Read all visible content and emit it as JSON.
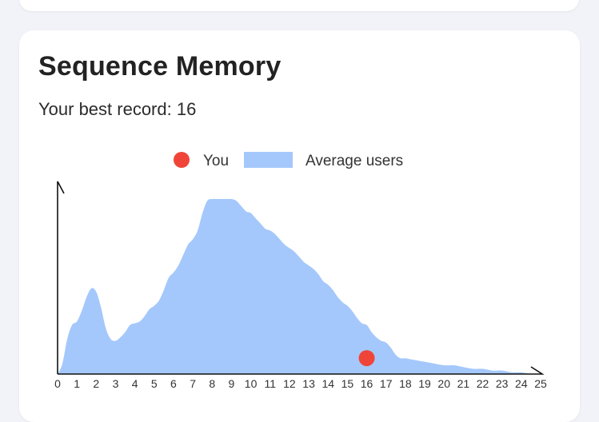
{
  "card": {
    "title": "Sequence Memory",
    "record_label": "Your best record: 16"
  },
  "colors": {
    "you": "#f04438",
    "average": "#a4c8fb",
    "axis": "#111111"
  },
  "chart_data": {
    "type": "area",
    "legend": [
      {
        "name": "You",
        "marker": "circle",
        "color": "#f04438"
      },
      {
        "name": "Average users",
        "marker": "rect",
        "color": "#a4c8fb"
      }
    ],
    "legend_position": "top-center",
    "x_ticks": [
      "0",
      "1",
      "2",
      "3",
      "4",
      "5",
      "6",
      "7",
      "8",
      "9",
      "10",
      "11",
      "12",
      "13",
      "14",
      "15",
      "16",
      "17",
      "18",
      "19",
      "20",
      "21",
      "22",
      "23",
      "24",
      "25"
    ],
    "xlim": [
      0,
      25
    ],
    "ylim": [
      0,
      1
    ],
    "series": [
      {
        "name": "Average users",
        "x": [
          0,
          0.25,
          0.5,
          0.75,
          1,
          1.25,
          1.5,
          1.75,
          2,
          2.25,
          2.5,
          2.75,
          3,
          3.25,
          3.5,
          3.75,
          4,
          4.25,
          4.5,
          4.75,
          5,
          5.25,
          5.5,
          5.75,
          6,
          6.25,
          6.5,
          6.75,
          7,
          7.25,
          7.5,
          7.75,
          8,
          8.25,
          8.5,
          8.75,
          9,
          9.25,
          9.5,
          9.75,
          10,
          10.25,
          10.5,
          10.75,
          11,
          11.25,
          11.5,
          11.75,
          12,
          12.25,
          12.5,
          12.75,
          13,
          13.25,
          13.5,
          13.75,
          14,
          14.25,
          14.5,
          14.75,
          15,
          15.25,
          15.5,
          15.75,
          16,
          16.25,
          16.5,
          16.75,
          17,
          17.25,
          17.5,
          17.75,
          18,
          18.5,
          19,
          19.5,
          20,
          20.5,
          21,
          21.5,
          22,
          22.5,
          23,
          23.5,
          24,
          24.5,
          25
        ],
        "values": [
          0,
          0.06,
          0.2,
          0.28,
          0.3,
          0.36,
          0.44,
          0.49,
          0.47,
          0.38,
          0.26,
          0.2,
          0.19,
          0.21,
          0.24,
          0.28,
          0.29,
          0.3,
          0.33,
          0.37,
          0.39,
          0.42,
          0.48,
          0.55,
          0.58,
          0.62,
          0.68,
          0.74,
          0.77,
          0.82,
          0.92,
          0.99,
          1.0,
          1.0,
          1.0,
          1.0,
          1.0,
          0.99,
          0.96,
          0.93,
          0.92,
          0.89,
          0.86,
          0.83,
          0.82,
          0.8,
          0.77,
          0.74,
          0.72,
          0.7,
          0.67,
          0.64,
          0.62,
          0.6,
          0.57,
          0.53,
          0.51,
          0.48,
          0.44,
          0.41,
          0.39,
          0.36,
          0.32,
          0.29,
          0.28,
          0.24,
          0.21,
          0.19,
          0.18,
          0.15,
          0.11,
          0.09,
          0.09,
          0.08,
          0.07,
          0.06,
          0.05,
          0.05,
          0.04,
          0.03,
          0.03,
          0.02,
          0.02,
          0.01,
          0.01,
          0.0,
          0.0
        ]
      },
      {
        "name": "You",
        "type": "scatter",
        "points": [
          {
            "x": 16,
            "y": 0.1
          }
        ]
      }
    ],
    "grid": false
  }
}
